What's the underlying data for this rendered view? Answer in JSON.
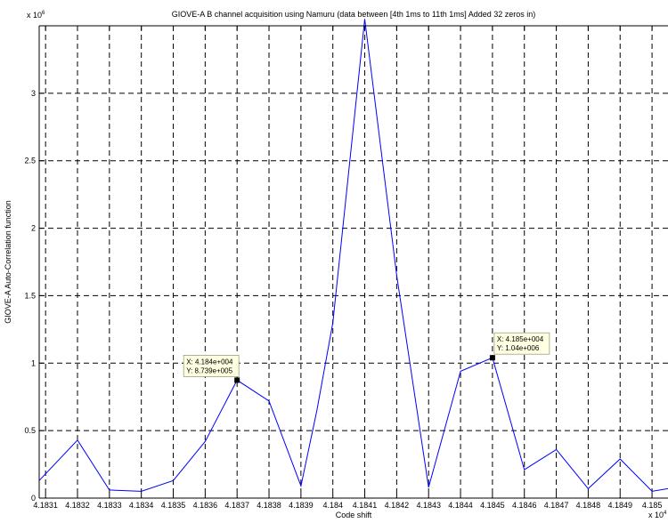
{
  "chart_data": {
    "type": "line",
    "title": "GIOVE-A B channel  acquisition using Namuru (data between [4th 1ms to 11th 1ms] Added 32 zeros in)",
    "xlabel": "Code shift",
    "ylabel": "GIOVE-A Auto-Correlation function",
    "x_multiplier": "x 10",
    "x_multiplier_exp": "4",
    "y_multiplier": "x 10",
    "y_multiplier_exp": "6",
    "xlim": [
      4.18308,
      4.18505
    ],
    "ylim": [
      0,
      3.5
    ],
    "grid": true,
    "x_ticks": [
      4.1831,
      4.1832,
      4.1833,
      4.1834,
      4.1835,
      4.1836,
      4.1837,
      4.1838,
      4.1839,
      4.184,
      4.1841,
      4.1842,
      4.1843,
      4.1844,
      4.1845,
      4.1846,
      4.1847,
      4.1848,
      4.1849,
      4.185
    ],
    "x_tick_labels": [
      "4.1831",
      "4.1832",
      "4.1833",
      "4.1834",
      "4.1835",
      "4.1836",
      "4.1837",
      "4.1838",
      "4.1839",
      "4.184",
      "4.1841",
      "4.1842",
      "4.1843",
      "4.1844",
      "4.1845",
      "4.1846",
      "4.1847",
      "4.1848",
      "4.1849",
      "4.185"
    ],
    "y_ticks": [
      0,
      0.5,
      1,
      1.5,
      2,
      2.5,
      3
    ],
    "y_tick_labels": [
      "0",
      "0.5",
      "1",
      "1.5",
      "2",
      "2.5",
      "3"
    ],
    "line_color": "#0000ff",
    "series": [
      {
        "x": [
          4.18308,
          4.1832,
          4.1833,
          4.1834,
          4.1835,
          4.1836,
          4.1837,
          4.1838,
          4.1839,
          4.18395,
          4.184,
          4.1841,
          4.1842,
          4.1843,
          4.1844,
          4.1845,
          4.1846,
          4.1847,
          4.1848,
          4.1849,
          4.185,
          4.18505
        ],
        "y": [
          0.13,
          0.43,
          0.06,
          0.05,
          0.13,
          0.42,
          0.874,
          0.72,
          0.09,
          0.65,
          1.3,
          3.55,
          1.65,
          0.08,
          0.94,
          1.04,
          0.21,
          0.36,
          0.07,
          0.29,
          0.05,
          0.07
        ]
      }
    ],
    "datatips": [
      {
        "x": 4.1837,
        "y": 0.874,
        "line1": "X: 4.184e+004",
        "line2": "Y: 8.739e+005",
        "place": "upper-left"
      },
      {
        "x": 4.1845,
        "y": 1.04,
        "line1": "X: 4.185e+004",
        "line2": "Y: 1.04e+006",
        "place": "upper-right"
      }
    ]
  }
}
